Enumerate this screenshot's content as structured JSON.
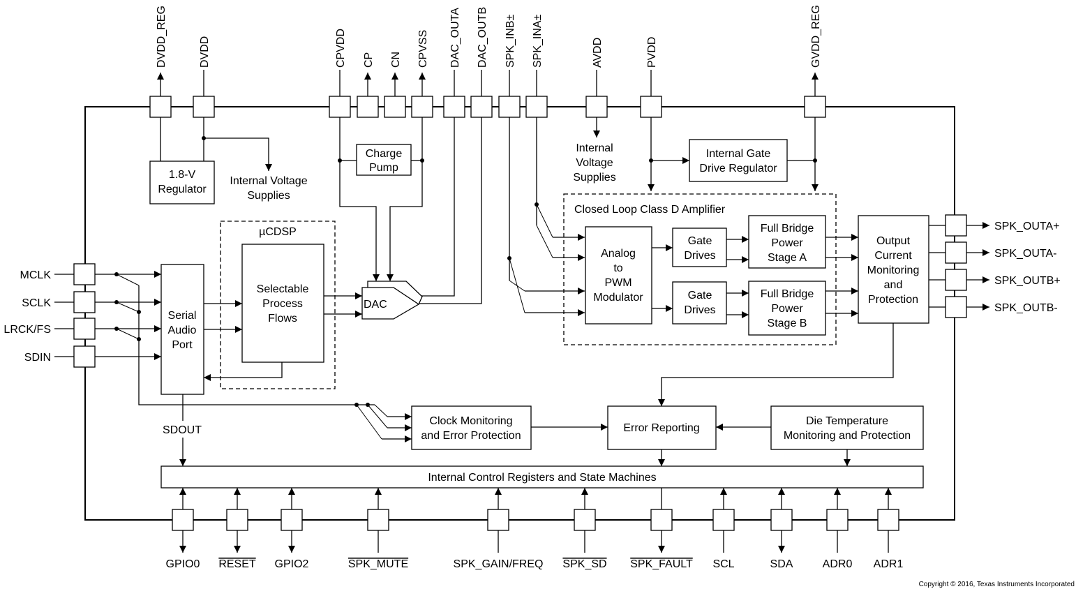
{
  "top_pins": [
    "DVDD_REG",
    "DVDD",
    "CPVDD",
    "CP",
    "CN",
    "CPVSS",
    "DAC_OUTA",
    "DAC_OUTB",
    "SPK_INB±",
    "SPK_INA±",
    "AVDD",
    "PVDD",
    "GVDD_REG"
  ],
  "left_pins": [
    "MCLK",
    "SCLK",
    "LRCK/FS",
    "SDIN"
  ],
  "right_pins": [
    "SPK_OUTA+",
    "SPK_OUTA-",
    "SPK_OUTB+",
    "SPK_OUTB-"
  ],
  "bottom_pins": [
    {
      "label": "GPIO0",
      "active_low": false
    },
    {
      "label": "RESET",
      "active_low": true
    },
    {
      "label": "GPIO2",
      "active_low": false
    },
    {
      "label": "SPK_MUTE",
      "active_low": true
    },
    {
      "label": "SPK_GAIN/FREQ",
      "active_low": false
    },
    {
      "label": "SPK_SD",
      "active_low": true
    },
    {
      "label": "SPK_FAULT",
      "active_low": true
    },
    {
      "label": "SCL",
      "active_low": false
    },
    {
      "label": "SDA",
      "active_low": false
    },
    {
      "label": "ADR0",
      "active_low": false
    },
    {
      "label": "ADR1",
      "active_low": false
    }
  ],
  "blocks": {
    "regulator": [
      "1.8-V",
      "Regulator"
    ],
    "internal_supplies_dvdd": [
      "Internal Voltage",
      "Supplies"
    ],
    "charge_pump": [
      "Charge",
      "Pump"
    ],
    "ucdsp": "µCDSP",
    "process_flows": [
      "Selectable",
      "Process",
      "Flows"
    ],
    "serial_audio_port": [
      "Serial",
      "Audio",
      "Port"
    ],
    "dac": "DAC",
    "internal_supplies_avdd": [
      "Internal",
      "Voltage",
      "Supplies"
    ],
    "gate_drive_regulator": [
      "Internal Gate",
      "Drive Regulator"
    ],
    "class_d": "Closed Loop Class D Amplifier",
    "pwm_modulator": [
      "Analog",
      "to",
      "PWM",
      "Modulator"
    ],
    "gate_drives_a": [
      "Gate",
      "Drives"
    ],
    "gate_drives_b": [
      "Gate",
      "Drives"
    ],
    "bridge_a": [
      "Full Bridge",
      "Power",
      "Stage A"
    ],
    "bridge_b": [
      "Full Bridge",
      "Power",
      "Stage B"
    ],
    "output_monitoring": [
      "Output",
      "Current",
      "Monitoring",
      "and",
      "Protection"
    ],
    "clock_monitoring": [
      "Clock Monitoring",
      "and Error Protection"
    ],
    "error_reporting": "Error Reporting",
    "die_temperature": [
      "Die Temperature",
      "Monitoring and Protection"
    ],
    "control_registers": "Internal Control Registers and State Machines",
    "sdout": "SDOUT"
  },
  "copyright": "Copyright © 2016, Texas Instruments Incorporated"
}
